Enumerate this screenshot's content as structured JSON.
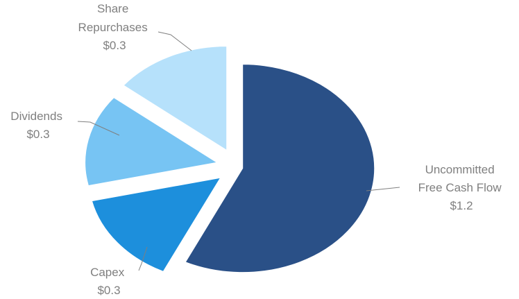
{
  "chart_data": {
    "type": "pie",
    "title": "",
    "exploded": true,
    "slices": [
      {
        "label_lines": [
          "Uncommitted",
          "Free Cash Flow"
        ],
        "value_label": "$1.2",
        "value": 1.2,
        "color": "#2a5087"
      },
      {
        "label_lines": [
          "Capex"
        ],
        "value_label": "$0.3",
        "value": 0.3,
        "color": "#1d8fdc"
      },
      {
        "label_lines": [
          "Dividends"
        ],
        "value_label": "$0.3",
        "value": 0.3,
        "color": "#77c4f3"
      },
      {
        "label_lines": [
          "Share",
          "Repurchases"
        ],
        "value_label": "$0.3",
        "value": 0.3,
        "color": "#b6e1fb"
      }
    ]
  }
}
